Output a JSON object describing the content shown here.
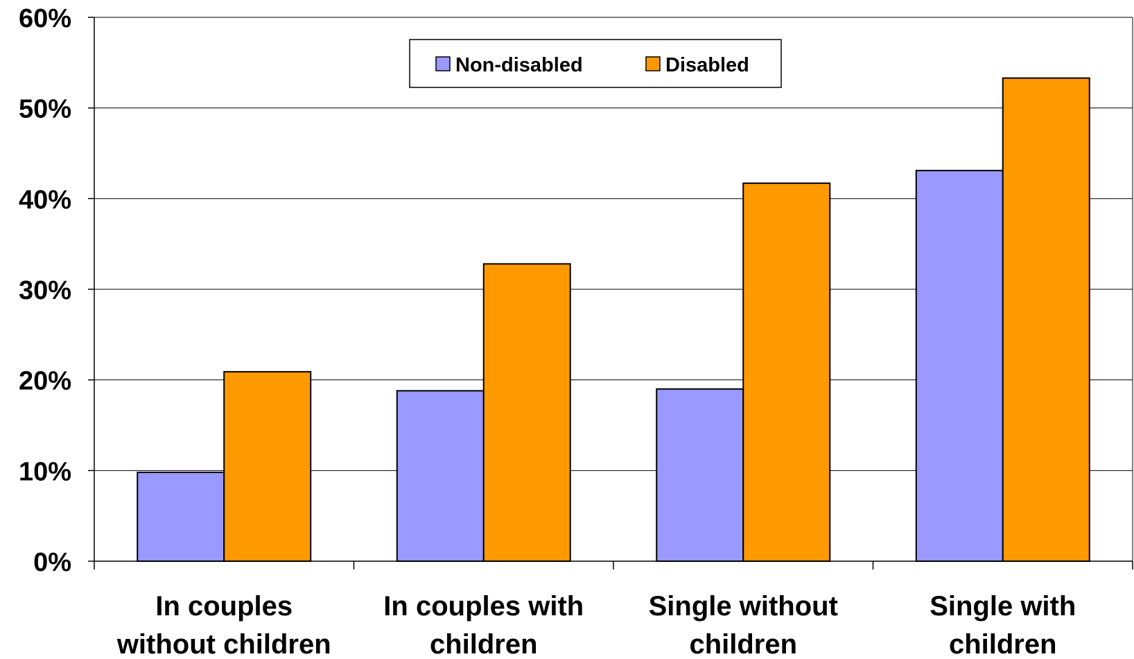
{
  "chart_data": {
    "type": "bar",
    "categories": [
      [
        "In couples",
        "without children"
      ],
      [
        "In couples with",
        "children"
      ],
      [
        "Single without",
        "children"
      ],
      [
        "Single with",
        "children"
      ]
    ],
    "series": [
      {
        "name": "Non-disabled",
        "color": "#9999ff",
        "values": [
          9.8,
          18.8,
          19.0,
          43.1
        ]
      },
      {
        "name": "Disabled",
        "color": "#ff9900",
        "values": [
          20.9,
          32.8,
          41.7,
          53.3
        ]
      }
    ],
    "ylim": [
      0,
      60
    ],
    "yticks": [
      "0%",
      "10%",
      "20%",
      "30%",
      "40%",
      "50%",
      "60%"
    ],
    "ytick_values": [
      0,
      10,
      20,
      30,
      40,
      50,
      60
    ],
    "grid": true,
    "legend_position": "top-center"
  }
}
